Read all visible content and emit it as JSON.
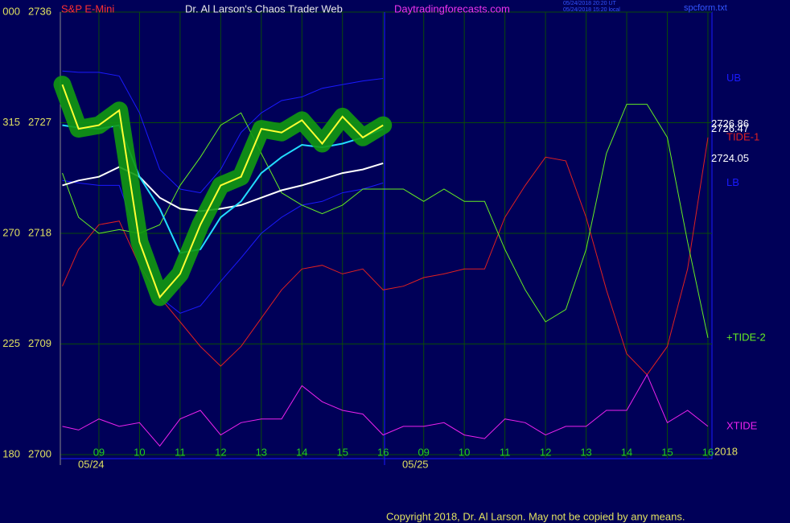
{
  "header": {
    "symbol": "S&P E-Mini",
    "site_title": "Dr. Al Larson's Chaos Trader Web",
    "site_url": "Daytradingforecasts.com",
    "timestamp_ut": "05/24/2018 20:20 UT",
    "timestamp_local": "05/24/2018 15:20 local",
    "file": "spcform.txt"
  },
  "footer": {
    "copyright": "Copyright 2018, Dr. Al Larson. May not be copied by any means.",
    "year": "2018"
  },
  "chart_data": {
    "type": "line",
    "xlim": [
      8.05,
      24.1
    ],
    "xticks": [
      {
        "value": 9,
        "label": "09"
      },
      10,
      11,
      12,
      13,
      14,
      15,
      16,
      {
        "value": 17,
        "label": "09"
      },
      {
        "value": 18,
        "label": "10"
      },
      {
        "value": 19,
        "label": "11"
      },
      {
        "value": 20,
        "label": "12"
      },
      {
        "value": 21,
        "label": "13"
      },
      {
        "value": 22,
        "label": "14"
      },
      {
        "value": 23,
        "label": "15"
      },
      {
        "value": 24,
        "label": "16"
      }
    ],
    "dates": [
      "05/24",
      "05/25"
    ],
    "ylim": [
      2700,
      2736
    ],
    "yticks": [
      2700,
      2709,
      2718,
      2727,
      2736
    ],
    "y2lim": [
      180,
      360
    ],
    "y2ticks": [
      180,
      225,
      270,
      315,
      {
        "value": 360,
        "label": "000"
      }
    ],
    "grid": true,
    "price_labels": [
      2726.86,
      2726.47,
      2724.05
    ],
    "x": [
      8.1,
      8.5,
      9,
      9.5,
      10,
      10.5,
      11,
      11.5,
      12,
      12.5,
      13,
      13.5,
      14,
      14.5,
      15,
      15.5,
      16,
      16.5,
      17,
      17.5,
      18,
      18.5,
      19,
      19.5,
      20,
      20.5,
      21,
      21.5,
      22,
      22.5,
      23,
      23.5,
      24
    ],
    "series": [
      {
        "name": "UB",
        "color": "#1a1aff",
        "values": [
          2731.2,
          2731.1,
          2731.1,
          2730.8,
          2727.8,
          2723.2,
          2721.6,
          2721.3,
          2723.2,
          2726.2,
          2727.8,
          2728.8,
          2729.1,
          2729.8,
          2730.1,
          2730.4,
          2730.6,
          null,
          null,
          null,
          null,
          null,
          null,
          null,
          null,
          null,
          null,
          null,
          null,
          null,
          null,
          null,
          null
        ]
      },
      {
        "name": "LB",
        "color": "#1a1aff",
        "values": [
          2722.3,
          2722.1,
          2721.9,
          2721.9,
          2717.3,
          2712.8,
          2711.5,
          2712.1,
          2714.1,
          2716.0,
          2718.0,
          2719.3,
          2720.3,
          2720.6,
          2721.3,
          2721.6,
          2722.1,
          null,
          null,
          null,
          null,
          null,
          null,
          null,
          null,
          null,
          null,
          null,
          null,
          null,
          null,
          null,
          null
        ]
      },
      {
        "name": "TIDE-1",
        "color": "#e02020",
        "values": [
          2713.7,
          2716.7,
          2718.7,
          2719.0,
          2715.4,
          2712.8,
          2710.8,
          2708.8,
          2707.2,
          2708.8,
          2711.1,
          2713.4,
          2715.1,
          2715.4,
          2714.7,
          2715.1,
          2713.4,
          2713.7,
          2714.4,
          2714.7,
          2715.1,
          2715.1,
          2719.3,
          2721.9,
          2724.2,
          2723.9,
          2719.3,
          2713.4,
          2708.2,
          2706.5,
          2708.8,
          2715.1,
          2725.8
        ]
      },
      {
        "name": "+TIDE-2",
        "color": "#66ee22",
        "values": [
          2722.9,
          2719.3,
          2718.0,
          2718.3,
          2718.0,
          2718.7,
          2721.9,
          2724.2,
          2726.8,
          2727.8,
          2724.5,
          2721.3,
          2720.3,
          2719.6,
          2720.3,
          2721.6,
          2721.6,
          2721.6,
          2720.6,
          2721.6,
          2720.6,
          2720.6,
          2716.7,
          2713.4,
          2710.8,
          2711.8,
          2716.7,
          2724.5,
          2728.5,
          2728.5,
          2725.8,
          2717.3,
          2709.5
        ]
      },
      {
        "name": "XTIDE",
        "color": "#ee22ee",
        "values": [
          2702.3,
          2702.0,
          2702.9,
          2702.3,
          2702.6,
          2700.7,
          2702.9,
          2703.6,
          2701.6,
          2702.6,
          2702.9,
          2702.9,
          2705.6,
          2704.3,
          2703.6,
          2703.3,
          2701.6,
          2702.3,
          2702.3,
          2702.6,
          2701.6,
          2701.3,
          2702.9,
          2702.6,
          2701.6,
          2702.3,
          2702.3,
          2703.6,
          2703.6,
          2706.5,
          2702.6,
          2703.6,
          2702.3
        ]
      },
      {
        "color": "#ffffff",
        "values": [
          2721.9,
          2722.3,
          2722.6,
          2723.4,
          2722.6,
          2720.9,
          2720.0,
          2719.8,
          2720.0,
          2720.3,
          2720.9,
          2721.5,
          2721.9,
          2722.4,
          2722.9,
          2723.2,
          2723.7,
          null,
          null,
          null,
          null,
          null,
          null,
          null,
          null,
          null,
          null,
          null,
          null,
          null,
          null,
          null,
          null
        ]
      },
      {
        "color": "#22ddff",
        "values": [
          2726.8,
          2726.6,
          2726.5,
          2726.8,
          2722.6,
          2720.0,
          2716.4,
          2716.7,
          2719.3,
          2720.6,
          2722.9,
          2724.2,
          2725.2,
          2725.0,
          2725.3,
          2725.8,
          2726.5,
          null,
          null,
          null,
          null,
          null,
          null,
          null,
          null,
          null,
          null,
          null,
          null,
          null,
          null,
          null,
          null
        ]
      },
      {
        "color": "#ffff33",
        "values": [
          2730.1,
          2726.5,
          2726.8,
          2728.0,
          2717.3,
          2712.8,
          2714.7,
          2718.7,
          2721.9,
          2722.6,
          2726.5,
          2726.2,
          2727.2,
          2725.3,
          2727.5,
          2725.8,
          2726.8,
          null,
          null,
          null,
          null,
          null,
          null,
          null,
          null,
          null,
          null,
          null,
          null,
          null,
          null,
          null,
          null
        ]
      }
    ]
  }
}
